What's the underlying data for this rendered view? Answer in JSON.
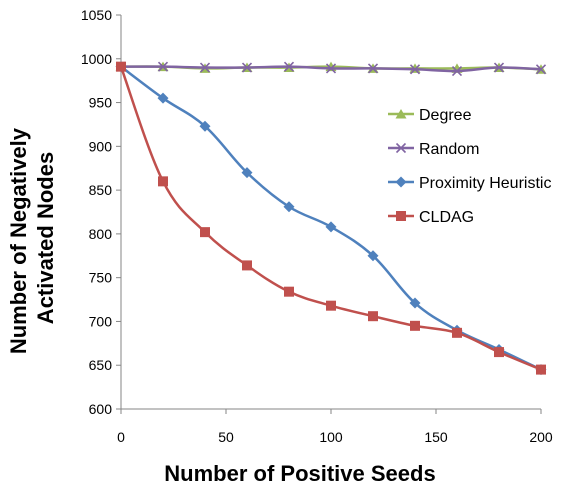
{
  "chart_data": {
    "type": "line",
    "title": "",
    "xlabel": "Number of Positive Seeds",
    "ylabel_lines": [
      "Number of Negatively",
      "Activated Nodes"
    ],
    "xlim": [
      0,
      200
    ],
    "ylim": [
      600,
      1050
    ],
    "x_ticks": [
      0,
      50,
      100,
      150,
      200
    ],
    "y_ticks": [
      600,
      650,
      700,
      750,
      800,
      850,
      900,
      950,
      1000,
      1050
    ],
    "grid": false,
    "legend_position": "right",
    "x": [
      0,
      20,
      40,
      60,
      80,
      100,
      120,
      140,
      160,
      180,
      200
    ],
    "series": [
      {
        "name": "Degree",
        "color": "#9BBB59",
        "marker": "triangle",
        "values": [
          991,
          991,
          989,
          990,
          990,
          991,
          989,
          989,
          989,
          990,
          988
        ]
      },
      {
        "name": "Random",
        "color": "#8064A2",
        "marker": "x",
        "values": [
          991,
          991,
          990,
          990,
          991,
          989,
          989,
          988,
          986,
          990,
          988
        ]
      },
      {
        "name": "Proximity Heuristic",
        "color": "#4F81BD",
        "marker": "diamond",
        "values": [
          991,
          955,
          923,
          870,
          831,
          808,
          775,
          721,
          690,
          668,
          645
        ]
      },
      {
        "name": "CLDAG",
        "color": "#C0504D",
        "marker": "square",
        "values": [
          991,
          860,
          802,
          764,
          734,
          718,
          706,
          695,
          687,
          665,
          645
        ]
      }
    ]
  }
}
